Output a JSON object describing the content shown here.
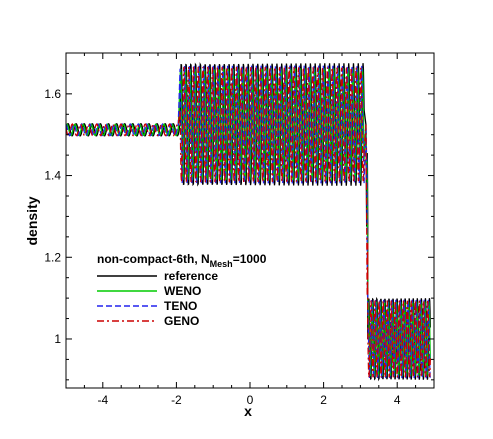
{
  "chart_data": {
    "type": "line",
    "title": "",
    "xlabel": "x",
    "ylabel": "density",
    "xlim": [
      -5,
      5
    ],
    "ylim": [
      0.88,
      1.7
    ],
    "xticks": [
      -4,
      -2,
      0,
      2,
      4
    ],
    "xtick_labels": [
      "-4",
      "-2",
      "0",
      "2",
      "4"
    ],
    "yticks": [
      1.0,
      1.2,
      1.4,
      1.6
    ],
    "ytick_labels": [
      "1",
      "1.2",
      "1.4",
      "1.6"
    ],
    "grid": false,
    "legend_title_parts": [
      "non-compact-6th, N",
      "Mesh",
      "=1000"
    ],
    "legend_position": "center-left",
    "series": [
      {
        "name": "reference",
        "color": "#000000",
        "dash": "solid"
      },
      {
        "name": "WENO",
        "color": "#00cc00",
        "dash": "solid"
      },
      {
        "name": "TENO",
        "color": "#2222ee",
        "dash": "dashed"
      },
      {
        "name": "GENO",
        "color": "#cc0000",
        "dash": "dashdot"
      }
    ],
    "regions": [
      {
        "x_start": -5,
        "x_end": -1.95,
        "mean": 1.512,
        "amplitude": 0.015,
        "wavelength": 0.22
      },
      {
        "x_start": -1.9,
        "x_end": 3.1,
        "mean": 1.525,
        "amplitude": 0.15,
        "wavelength": 0.13
      },
      {
        "x_start": 3.17,
        "x_end": 3.2,
        "mean": 1.275,
        "amplitude": 0.18,
        "wavelength": 0.06
      },
      {
        "x_start": 3.2,
        "x_end": 4.9,
        "mean": 1.0,
        "amplitude": 0.1,
        "wavelength": 0.11
      }
    ],
    "shock_x": 3.15
  }
}
